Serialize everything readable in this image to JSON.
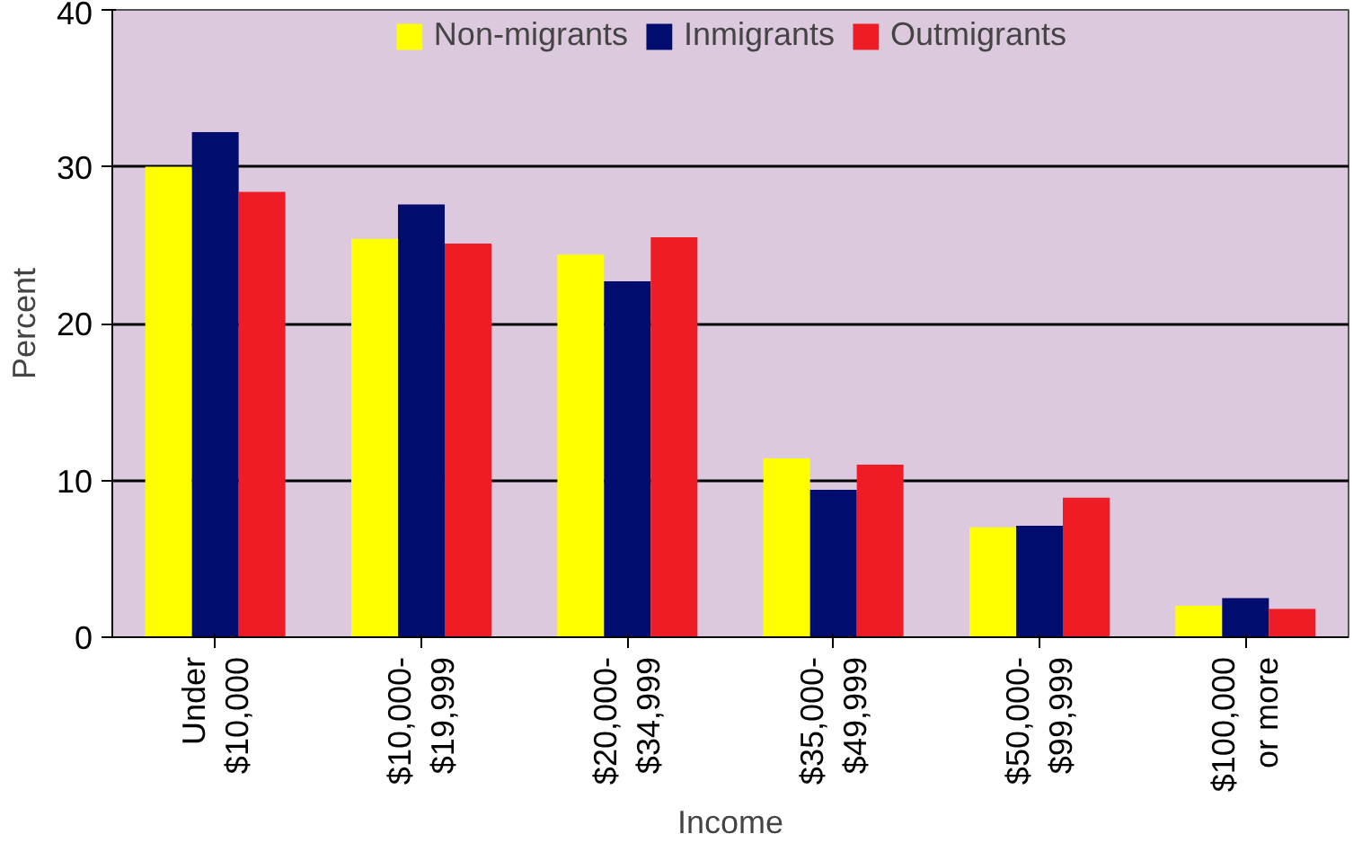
{
  "chart_data": {
    "type": "bar",
    "xlabel": "Income",
    "ylabel": "Percent",
    "categories": [
      "Under\n$10,000",
      "$10,000-\n$19,999",
      "$20,000-\n$34,999",
      "$35,000-\n$49,999",
      "$50,000-\n$99,999",
      "$100,000\nor more"
    ],
    "series": [
      {
        "name": "Non-migrants",
        "color": "#ffff00",
        "values": [
          30.0,
          25.4,
          24.4,
          11.4,
          7.0,
          2.0
        ]
      },
      {
        "name": "Inmigrants",
        "color": "#000d6e",
        "values": [
          32.2,
          27.6,
          22.7,
          9.4,
          7.1,
          2.5
        ]
      },
      {
        "name": "Outmigrants",
        "color": "#ee1c24",
        "values": [
          28.4,
          25.1,
          25.5,
          11.0,
          8.9,
          1.8
        ]
      }
    ],
    "ylim": [
      0,
      40
    ],
    "yticks": [
      0,
      10,
      20,
      30,
      40
    ],
    "grid": "y",
    "legend": "top"
  }
}
